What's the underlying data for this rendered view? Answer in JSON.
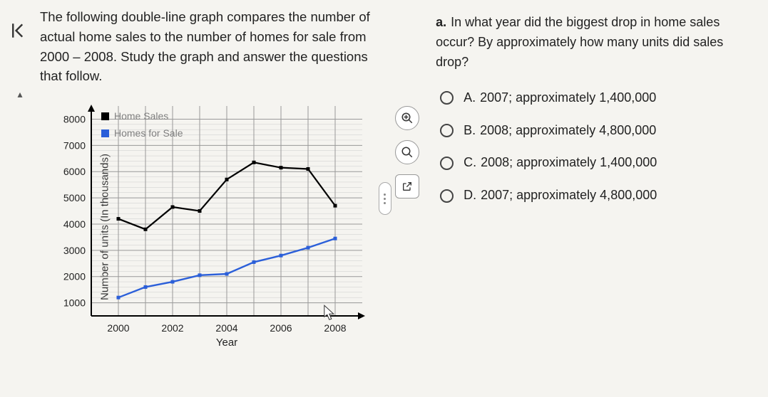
{
  "prompt_text": "The following double-line graph compares the number of actual home sales to the number of homes for sale from 2000 – 2008. Study the graph and answer the questions that follow.",
  "question": {
    "label": "a.",
    "text": "In what year did the biggest drop in home sales occur? By approximately how many units did sales drop?"
  },
  "options": [
    {
      "letter": "A.",
      "text": "2007; approximately 1,400,000"
    },
    {
      "letter": "B.",
      "text": "2008; approximately 4,800,000"
    },
    {
      "letter": "C.",
      "text": "2008; approximately 1,400,000"
    },
    {
      "letter": "D.",
      "text": "2007; approximately 4,800,000"
    }
  ],
  "chart": {
    "type": "line",
    "ylabel": "Number of units (In thousands)",
    "xlabel": "Year",
    "label_fontsize": 15,
    "tick_fontsize": 14,
    "background_color": "#f5f4f0",
    "grid_color": "#999999",
    "minor_grid_color": "#cccccc",
    "axis_color": "#000000",
    "x_ticks": [
      2000,
      2002,
      2004,
      2006,
      2008
    ],
    "x_range": [
      1999,
      2009
    ],
    "y_ticks": [
      1000,
      2000,
      3000,
      4000,
      5000,
      6000,
      7000,
      8000
    ],
    "y_range": [
      500,
      8500
    ],
    "legend": {
      "items": [
        {
          "marker_color": "#000000",
          "label": "Home Sales"
        },
        {
          "marker_color": "#2b5fd9",
          "label": "Homes for Sale"
        }
      ],
      "label_color": "#808080",
      "fontsize": 14
    },
    "series": [
      {
        "name": "Home Sales",
        "color": "#000000",
        "line_width": 2.2,
        "marker": "square",
        "marker_size": 5,
        "points": [
          [
            2000,
            4200
          ],
          [
            2001,
            3800
          ],
          [
            2002,
            4650
          ],
          [
            2003,
            4500
          ],
          [
            2004,
            5700
          ],
          [
            2005,
            6350
          ],
          [
            2006,
            6150
          ],
          [
            2007,
            6100
          ],
          [
            2008,
            4700
          ]
        ]
      },
      {
        "name": "Homes for Sale",
        "color": "#2b5fd9",
        "line_width": 2.4,
        "marker": "square",
        "marker_size": 5,
        "points": [
          [
            2000,
            1200
          ],
          [
            2001,
            1600
          ],
          [
            2002,
            1800
          ],
          [
            2003,
            2050
          ],
          [
            2004,
            2100
          ],
          [
            2005,
            2550
          ],
          [
            2006,
            2800
          ],
          [
            2007,
            3100
          ],
          [
            2008,
            3450
          ]
        ]
      }
    ]
  },
  "tool_icons": {
    "zoom_in": "⊕",
    "zoom_out": "⌕",
    "popout": "⇱"
  }
}
